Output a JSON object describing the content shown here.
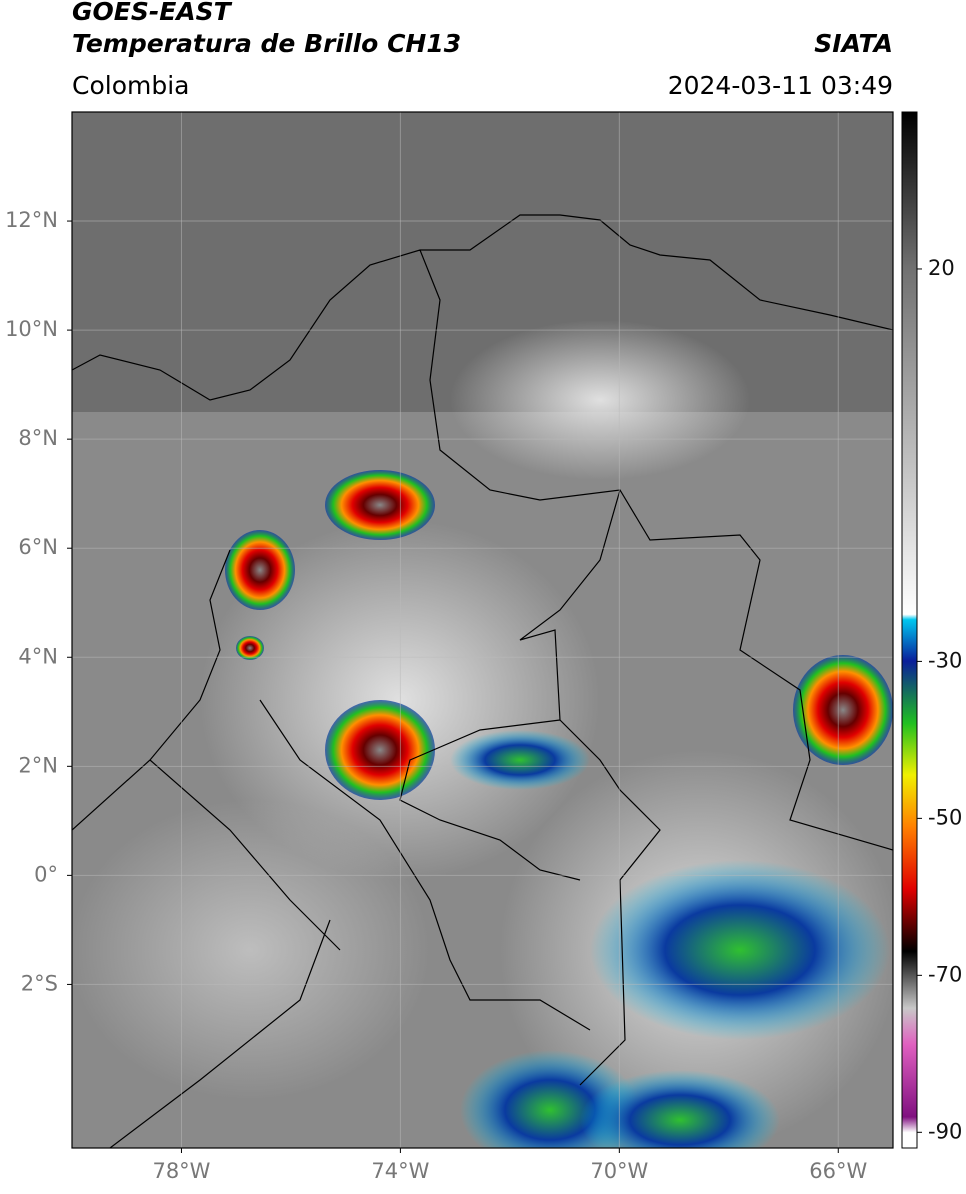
{
  "header": {
    "title": "GOES-EAST",
    "subtitle": "Temperatura de Brillo CH13",
    "agency": "SIATA",
    "region": "Colombia",
    "timestamp": "2024-03-11 03:49"
  },
  "map": {
    "xlim": [
      -80,
      -65
    ],
    "ylim": [
      -5,
      14
    ],
    "xticks": [
      {
        "value": -78,
        "label": "78°W"
      },
      {
        "value": -74,
        "label": "74°W"
      },
      {
        "value": -70,
        "label": "70°W"
      },
      {
        "value": -66,
        "label": "66°W"
      }
    ],
    "yticks": [
      {
        "value": 12,
        "label": "12°N"
      },
      {
        "value": 10,
        "label": "10°N"
      },
      {
        "value": 8,
        "label": "8°N"
      },
      {
        "value": 6,
        "label": "6°N"
      },
      {
        "value": 4,
        "label": "4°N"
      },
      {
        "value": 2,
        "label": "2°N"
      },
      {
        "value": 0,
        "label": "0°"
      },
      {
        "value": -2,
        "label": "2°S"
      }
    ],
    "grid": true
  },
  "colorbar": {
    "clim": [
      -92,
      40
    ],
    "ticks": [
      20,
      -30,
      -50,
      -70,
      -90
    ]
  }
}
